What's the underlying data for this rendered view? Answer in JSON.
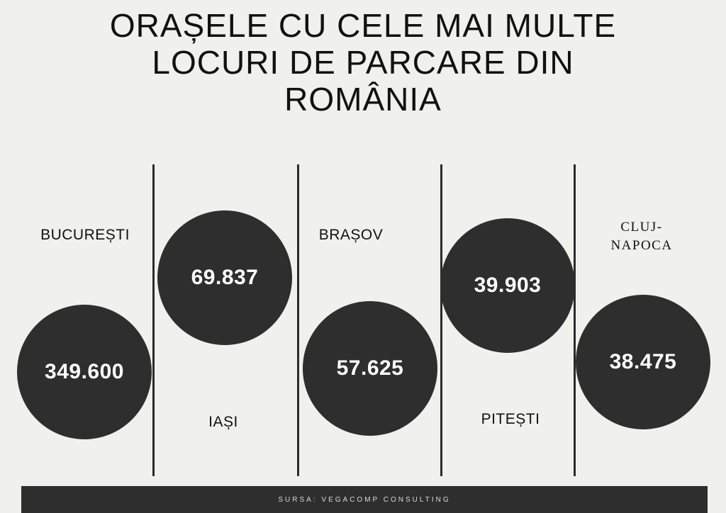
{
  "title": "ORAȘELE CU CELE MAI MULTE LOCURI DE PARCARE DIN ROMÂNIA",
  "footer": "SURSA: VEGACOMP CONSULTING",
  "colors": {
    "background": "#f0f0ec",
    "circle": "#2e2e2e",
    "text": "#111111",
    "circle_text": "#ffffff"
  },
  "chart_data": {
    "type": "bar",
    "title": "ORAȘELE CU CELE MAI MULTE LOCURI DE PARCARE DIN ROMÂNIA",
    "categories": [
      "BUCUREȘTI",
      "IAȘI",
      "BRAȘOV",
      "PITEȘTI",
      "CLUJ-NAPOCA"
    ],
    "values": [
      349600,
      69837,
      57625,
      39903,
      38475
    ],
    "value_labels": [
      "349.600",
      "69.837",
      "57.625",
      "39.903",
      "38.475"
    ],
    "category_labels": [
      "BUCUREȘTI",
      "IAȘI",
      "BRAȘOV",
      "PITEȘTI",
      "CLUJ-\nNAPOCA"
    ]
  }
}
